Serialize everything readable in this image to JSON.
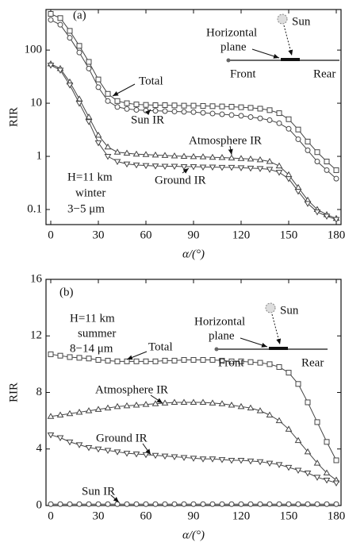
{
  "chart_data": [
    {
      "type": "line",
      "panel_label": "(a)",
      "y_label": "RIR",
      "x_label": "α/(°)",
      "log_y": true,
      "condition": [
        "H=11 km",
        "winter",
        "3−5 μm"
      ],
      "inset_labels": [
        "Sun",
        "Horizontal",
        "plane",
        "Front",
        "Rear"
      ],
      "x": [
        0,
        6,
        12,
        18,
        24,
        30,
        36,
        42,
        48,
        54,
        60,
        66,
        72,
        78,
        84,
        90,
        96,
        102,
        108,
        114,
        120,
        126,
        132,
        138,
        144,
        150,
        156,
        162,
        168,
        174,
        180
      ],
      "xlim": [
        -3,
        183
      ],
      "xticks": [
        0,
        30,
        60,
        90,
        120,
        150,
        180
      ],
      "ylim": [
        0.052,
        580
      ],
      "yticks": [
        0.1,
        1,
        10,
        100
      ],
      "series": [
        {
          "name": "Total",
          "color": "#444444",
          "marker": "square",
          "values": [
            480,
            400,
            230,
            120,
            60,
            28,
            15,
            11,
            10,
            9.5,
            9.3,
            9.2,
            9.2,
            9.1,
            9.0,
            9.0,
            8.9,
            8.8,
            8.7,
            8.6,
            8.4,
            8.2,
            7.9,
            7.4,
            6.5,
            5.0,
            3.2,
            1.9,
            1.2,
            0.8,
            0.55
          ]
        },
        {
          "name": "Sun IR",
          "color": "#444444",
          "marker": "circle",
          "values": [
            370,
            300,
            170,
            90,
            45,
            20,
            11,
            8.5,
            7.8,
            7.5,
            7.3,
            7.2,
            7.1,
            7.0,
            6.9,
            6.8,
            6.6,
            6.4,
            6.2,
            6.0,
            5.8,
            5.5,
            5.2,
            4.8,
            4.2,
            3.3,
            2.1,
            1.3,
            0.8,
            0.55,
            0.38
          ]
        },
        {
          "name": "Atmosphere IR",
          "color": "#444444",
          "marker": "triangle-up",
          "values": [
            55,
            45,
            25,
            12,
            5.5,
            2.5,
            1.5,
            1.2,
            1.15,
            1.1,
            1.08,
            1.06,
            1.04,
            1.02,
            1.0,
            0.99,
            0.98,
            0.96,
            0.95,
            0.93,
            0.91,
            0.89,
            0.86,
            0.8,
            0.66,
            0.45,
            0.26,
            0.15,
            0.1,
            0.08,
            0.068
          ]
        },
        {
          "name": "Ground IR",
          "color": "#444444",
          "marker": "triangle-down",
          "values": [
            52,
            42,
            22,
            10,
            4.5,
            1.8,
            1.0,
            0.8,
            0.72,
            0.69,
            0.67,
            0.66,
            0.65,
            0.65,
            0.64,
            0.64,
            0.63,
            0.63,
            0.62,
            0.62,
            0.61,
            0.6,
            0.59,
            0.57,
            0.5,
            0.38,
            0.22,
            0.13,
            0.09,
            0.075,
            0.065
          ]
        }
      ]
    },
    {
      "type": "line",
      "panel_label": "(b)",
      "y_label": "RIR",
      "x_label": "α/(°)",
      "log_y": false,
      "condition": [
        "H=11 km",
        "summer",
        "8−14 μm"
      ],
      "inset_labels": [
        "Sun",
        "Horizontal",
        "plane",
        "Front",
        "Rear"
      ],
      "x": [
        0,
        6,
        12,
        18,
        24,
        30,
        36,
        42,
        48,
        54,
        60,
        66,
        72,
        78,
        84,
        90,
        96,
        102,
        108,
        114,
        120,
        126,
        132,
        138,
        144,
        150,
        156,
        162,
        168,
        174,
        180
      ],
      "xlim": [
        -3,
        183
      ],
      "xticks": [
        0,
        30,
        60,
        90,
        120,
        150,
        180
      ],
      "ylim": [
        0,
        16
      ],
      "yticks": [
        0,
        4,
        8,
        12,
        16
      ],
      "series": [
        {
          "name": "Total",
          "color": "#444444",
          "marker": "square",
          "values": [
            10.7,
            10.6,
            10.5,
            10.45,
            10.4,
            10.3,
            10.25,
            10.2,
            10.2,
            10.2,
            10.2,
            10.2,
            10.25,
            10.25,
            10.3,
            10.3,
            10.3,
            10.3,
            10.25,
            10.2,
            10.2,
            10.15,
            10.1,
            10.0,
            9.8,
            9.4,
            8.6,
            7.3,
            5.9,
            4.5,
            3.2
          ]
        },
        {
          "name": "Atmosphere IR",
          "color": "#444444",
          "marker": "triangle-up",
          "values": [
            6.3,
            6.4,
            6.5,
            6.6,
            6.7,
            6.8,
            6.9,
            7.0,
            7.05,
            7.1,
            7.15,
            7.2,
            7.25,
            7.3,
            7.3,
            7.3,
            7.3,
            7.25,
            7.2,
            7.1,
            7.0,
            6.9,
            6.7,
            6.4,
            6.0,
            5.4,
            4.6,
            3.8,
            3.0,
            2.3,
            1.8
          ]
        },
        {
          "name": "Ground IR",
          "color": "#444444",
          "marker": "triangle-down",
          "values": [
            5.0,
            4.8,
            4.5,
            4.3,
            4.1,
            4.0,
            3.9,
            3.8,
            3.7,
            3.65,
            3.6,
            3.55,
            3.5,
            3.45,
            3.4,
            3.35,
            3.3,
            3.3,
            3.25,
            3.2,
            3.2,
            3.15,
            3.1,
            3.0,
            2.9,
            2.7,
            2.5,
            2.3,
            2.0,
            1.8,
            1.6
          ]
        },
        {
          "name": "Sun IR",
          "color": "#444444",
          "marker": "circle",
          "values": [
            0.1,
            0.1,
            0.1,
            0.1,
            0.1,
            0.1,
            0.1,
            0.1,
            0.1,
            0.1,
            0.1,
            0.1,
            0.1,
            0.1,
            0.1,
            0.1,
            0.1,
            0.1,
            0.1,
            0.1,
            0.1,
            0.1,
            0.1,
            0.1,
            0.1,
            0.1,
            0.1,
            0.1,
            0.1,
            0.1,
            0.1
          ]
        }
      ]
    }
  ]
}
